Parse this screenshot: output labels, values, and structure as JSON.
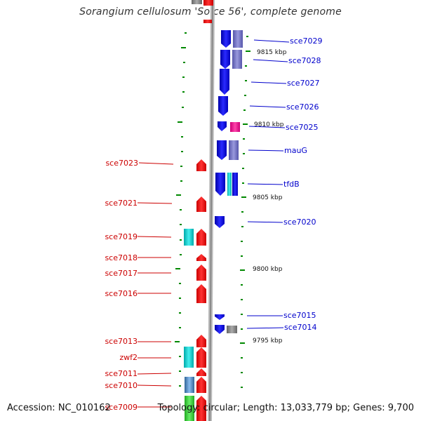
{
  "title": "Sorangium cellulosum 'So ce 56', complete genome",
  "accession_text": "Accession: NC_010162",
  "summary_text": "Topology: circular; Length: 13,033,779 bp; Genes: 9,700",
  "colors": {
    "forward_label": "#0000cc",
    "reverse_label": "#cc0000",
    "forward_gene": "#1010ee",
    "reverse_gene": "#ee1010",
    "backbone": "#999999",
    "tick": "#008800"
  },
  "kbp_markers": [
    "9815 kbp",
    "9810 kbp",
    "9805 kbp",
    "9800 kbp",
    "9795 kbp"
  ],
  "forward_labels": [
    "sce7029",
    "sce7028",
    "sce7027",
    "sce7026",
    "sce7025",
    "mauG",
    "tfdB",
    "sce7020",
    "sce7015",
    "sce7014"
  ],
  "reverse_labels": [
    "sce7023",
    "sce7021",
    "sce7019",
    "sce7018",
    "sce7017",
    "sce7016",
    "sce7013",
    "zwf2",
    "sce7011",
    "sce7010",
    "sce7009"
  ]
}
